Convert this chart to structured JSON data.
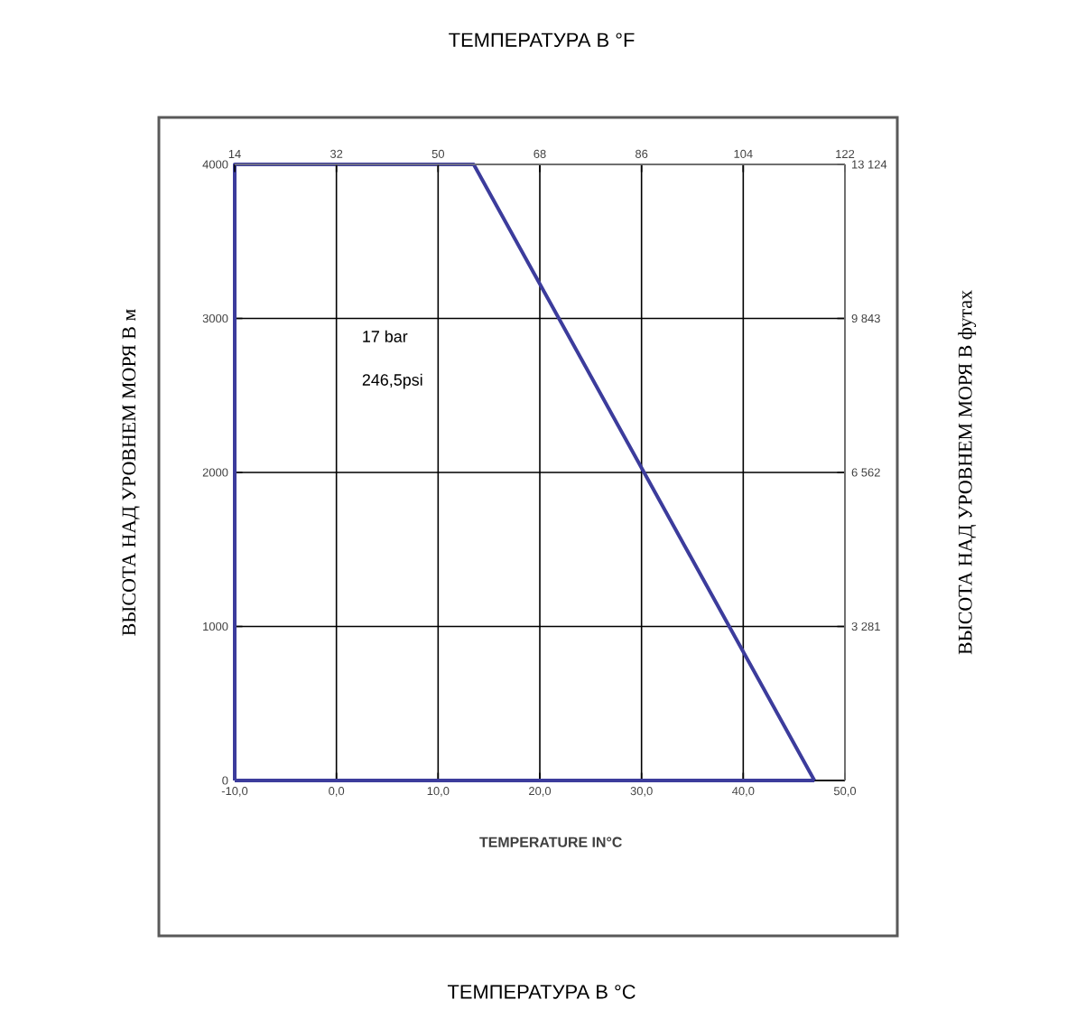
{
  "chart_data": {
    "type": "line",
    "xlabel": "TEMPERATURE    IN°C",
    "x2label": "ТЕМПЕРАТУРА В °F",
    "ylabel": "ВЫСОТА НАД УРОВНЕМ МОРЯ В м",
    "y2label": "ВЫСОТА НАД УРОВНЕМ МОРЯ В футах",
    "annotations": [
      "17 bar",
      "246,5psi",
      "ТЕМПЕРАТУРА В °C"
    ],
    "x": [
      -10,
      -10,
      13.5,
      47
    ],
    "series": [
      {
        "color": "#3c3c9c",
        "values": [
          0,
          4000,
          4000,
          0
        ]
      },
      {
        "color": "#3c3c9c",
        "x": [
          -10,
          47
        ],
        "values": [
          0,
          0
        ]
      }
    ],
    "xlim": [
      -10,
      50
    ],
    "xticks": [
      {
        "value": -10,
        "label": "-10,0"
      },
      {
        "value": 0,
        "label": "0,0"
      },
      {
        "value": 10,
        "label": "10,0"
      },
      {
        "value": 20,
        "label": "20,0"
      },
      {
        "value": 30,
        "label": "30,0"
      },
      {
        "value": 40,
        "label": "40,0"
      },
      {
        "value": 50,
        "label": "50,0"
      }
    ],
    "x2lim": [
      14,
      122
    ],
    "x2ticks": [
      14,
      32,
      50,
      68,
      86,
      104,
      122
    ],
    "ylim": [
      0,
      4000
    ],
    "yticks": [
      0,
      1000,
      2000,
      3000,
      4000
    ],
    "y2lim": [
      0,
      13124
    ],
    "y2ticks": [
      {
        "value": 3281,
        "label": "3 281"
      },
      {
        "value": 6562,
        "label": "6 562"
      },
      {
        "value": 9843,
        "label": "9 843"
      },
      {
        "value": 13124,
        "label": "13 124"
      }
    ],
    "grid": true,
    "marker": "none",
    "line_style": "solid"
  }
}
